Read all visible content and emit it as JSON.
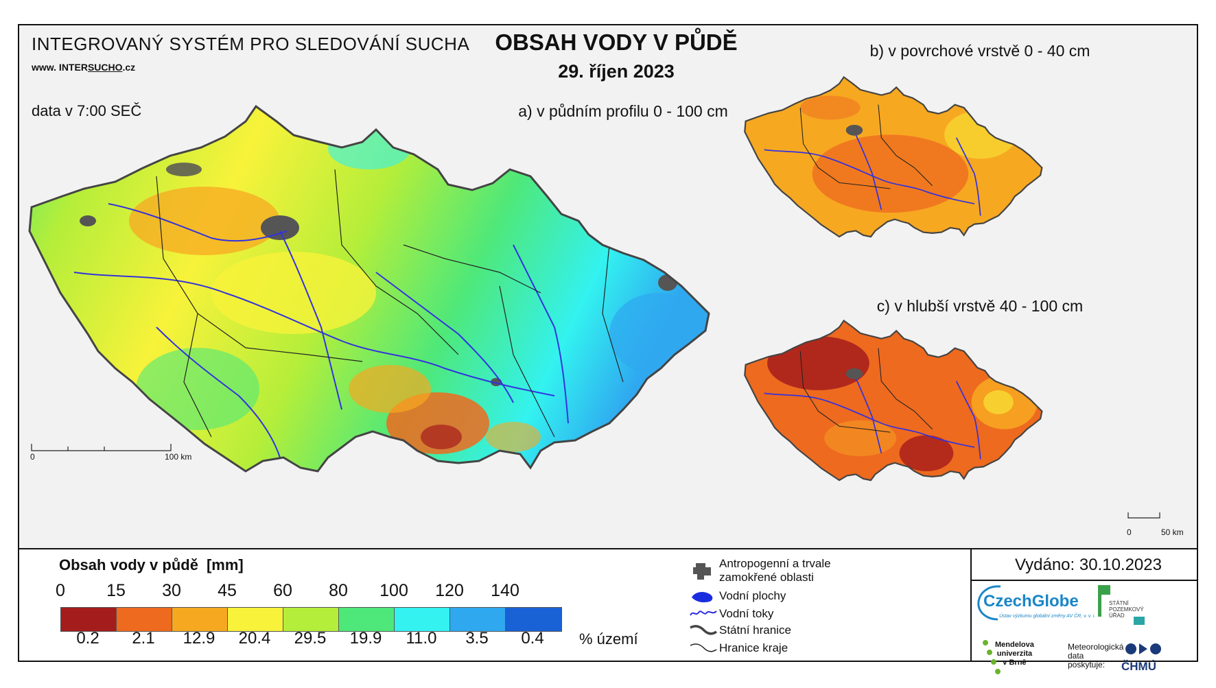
{
  "header": {
    "system": "INTEGROVANÝ SYSTÉM PRO SLEDOVÁNÍ SUCHA",
    "www_prefix": "www.",
    "www_mid": " INTER",
    "www_ul": "SUCHO",
    "www_suffix": ".cz",
    "data_time": "data v 7:00 SEČ",
    "title": "OBSAH VODY V PŮDĚ",
    "date": "29. říjen 2023"
  },
  "maps": {
    "a_label": "a) v půdním profilu 0 - 100 cm",
    "b_label": "b) v povrchové vrstvě 0 - 40 cm",
    "c_label": "c) v hlubší vrstvě 40 - 100 cm",
    "scale_a_start": "0",
    "scale_a_end": "100 km",
    "scale_c_start": "0",
    "scale_c_end": "50 km"
  },
  "legend": {
    "title": "Obsah vody v půdě",
    "unit": "[mm]",
    "limits": [
      "0",
      "15",
      "30",
      "45",
      "60",
      "80",
      "100",
      "120",
      "140"
    ],
    "percentages": [
      "0.2",
      "2.1",
      "12.9",
      "20.4",
      "29.5",
      "19.9",
      "11.0",
      "3.5",
      "0.4"
    ],
    "percent_unit": "% území",
    "colors": [
      "#a51c1c",
      "#ee6a1f",
      "#f7a821",
      "#f8f23a",
      "#b4ee3a",
      "#4ee87a",
      "#33f2f0",
      "#2fa8f0",
      "#1862d6"
    ]
  },
  "symbols": {
    "anthropogenic_1": "Antropogenní a trvale",
    "anthropogenic_2": "zamokřené oblasti",
    "water_areas": "Vodní plochy",
    "water_streams": "Vodní toky",
    "state_border": "Státní hranice",
    "region_border": "Hranice kraje"
  },
  "footer": {
    "issued": "Vydáno: 30.10.2023",
    "czechglobe": "CzechGlobe",
    "czechglobe_sub": "Ústav výzkumu globální změny AV ČR, v. v. i.",
    "spu": [
      "STÁTNÍ",
      "POZEMKOVÝ",
      "ÚŘAD"
    ],
    "mendel": [
      "Mendelova",
      "univerzita",
      "v Brně"
    ],
    "met": [
      "Meteorologická",
      "data",
      "poskytuje:"
    ],
    "chmu": "ČHMÚ"
  }
}
